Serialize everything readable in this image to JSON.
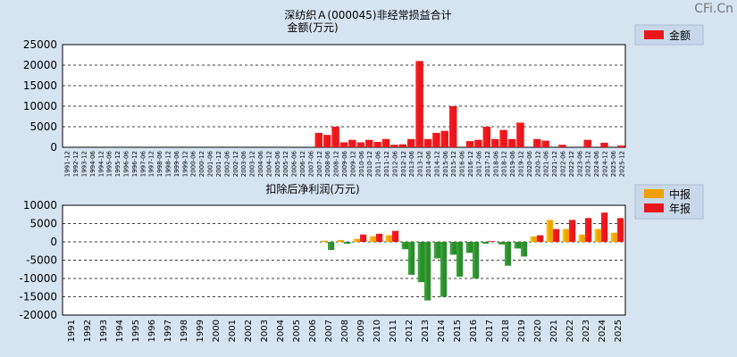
{
  "watermark": "CFi.Cn",
  "colors": {
    "bg": "#d6e4f2",
    "plot": "#ffffff",
    "red": "#e8171b",
    "green": "#2e8b2e",
    "orange": "#f0a000"
  },
  "chart_data": [
    {
      "type": "bar",
      "title": "深纺织Ａ(000045)非经常损益合计",
      "subtitle": "金额(万元)",
      "legend": [
        {
          "label": "金额",
          "color": "#e8171b"
        }
      ],
      "ylim": [
        0,
        25000
      ],
      "yticks": [
        "25000",
        "20000",
        "15000",
        "10000",
        "5000",
        "0"
      ],
      "categories": [
        "1991-12",
        "1992-12",
        "1993-12",
        "1994-06",
        "1994-12",
        "1995-06",
        "1995-12",
        "1996-06",
        "1996-12",
        "1997-06",
        "1997-12",
        "1998-06",
        "1998-12",
        "1999-06",
        "1999-12",
        "2000-06",
        "2000-12",
        "2001-06",
        "2001-12",
        "2002-06",
        "2002-12",
        "2003-06",
        "2003-12",
        "2004-06",
        "2004-12",
        "2005-06",
        "2005-12",
        "2006-06",
        "2006-12",
        "2007-06",
        "2007-12",
        "2008-06",
        "2008-12",
        "2009-06",
        "2009-12",
        "2010-06",
        "2010-12",
        "2011-06",
        "2011-12",
        "2012-06",
        "2012-12",
        "2013-06",
        "2013-12",
        "2014-06",
        "2014-12",
        "2015-06",
        "2015-12",
        "2016-06",
        "2016-12",
        "2017-06",
        "2017-12",
        "2018-06",
        "2018-12",
        "2019-06",
        "2019-12",
        "2020-06",
        "2020-12",
        "2021-06",
        "2021-12",
        "2022-06",
        "2022-12",
        "2023-06",
        "2023-12",
        "2024-06",
        "2024-12",
        "2025-06",
        "2025-12"
      ],
      "values": [
        0,
        0,
        0,
        0,
        0,
        0,
        0,
        0,
        0,
        0,
        0,
        0,
        0,
        0,
        0,
        0,
        0,
        0,
        0,
        0,
        0,
        0,
        0,
        0,
        0,
        0,
        0,
        0,
        0,
        100,
        3500,
        3000,
        5000,
        1200,
        1800,
        1200,
        1800,
        1300,
        2000,
        600,
        700,
        2000,
        21000,
        2000,
        3500,
        4000,
        10000,
        100,
        1500,
        1800,
        5000,
        2000,
        4200,
        2000,
        6000,
        100,
        2000,
        1600,
        0,
        600,
        0,
        0,
        1800,
        0,
        1100,
        0,
        400
      ]
    },
    {
      "type": "bar",
      "title": "扣除后净利润(万元)",
      "legend": [
        {
          "label": "中报",
          "color": "#f0a000"
        },
        {
          "label": "年报",
          "color": "#e8171b"
        }
      ],
      "ylim": [
        -20000,
        10000
      ],
      "yticks": [
        "10000",
        "5000",
        "0",
        "-5000",
        "-10000",
        "-15000",
        "-20000"
      ],
      "categories": [
        "1991",
        "1992",
        "1993",
        "1994",
        "1995",
        "1996",
        "1997",
        "1998",
        "1999",
        "2000",
        "2001",
        "2002",
        "2003",
        "2004",
        "2005",
        "2006",
        "2007",
        "2008",
        "2009",
        "2010",
        "2011",
        "2012",
        "2013",
        "2014",
        "2015",
        "2016",
        "2017",
        "2018",
        "2019",
        "2020",
        "2021",
        "2022",
        "2023",
        "2024",
        "2025"
      ],
      "series": [
        {
          "name": "中报",
          "values": [
            0,
            0,
            0,
            0,
            0,
            0,
            0,
            0,
            0,
            0,
            0,
            0,
            0,
            0,
            0,
            0,
            300,
            500,
            800,
            1500,
            1800,
            -2000,
            -11000,
            -4500,
            -3500,
            -3000,
            -500,
            -700,
            -1800,
            1500,
            6000,
            3500,
            2000,
            3500,
            2500
          ]
        },
        {
          "name": "年报",
          "values": [
            0,
            0,
            0,
            0,
            0,
            0,
            0,
            0,
            0,
            0,
            0,
            0,
            0,
            0,
            0,
            0,
            -2200,
            -500,
            2000,
            2200,
            3000,
            -9000,
            -16000,
            -15000,
            -9500,
            -10000,
            200,
            -6500,
            -4000,
            1800,
            3500,
            6000,
            6500,
            8000,
            6500
          ]
        }
      ]
    }
  ]
}
